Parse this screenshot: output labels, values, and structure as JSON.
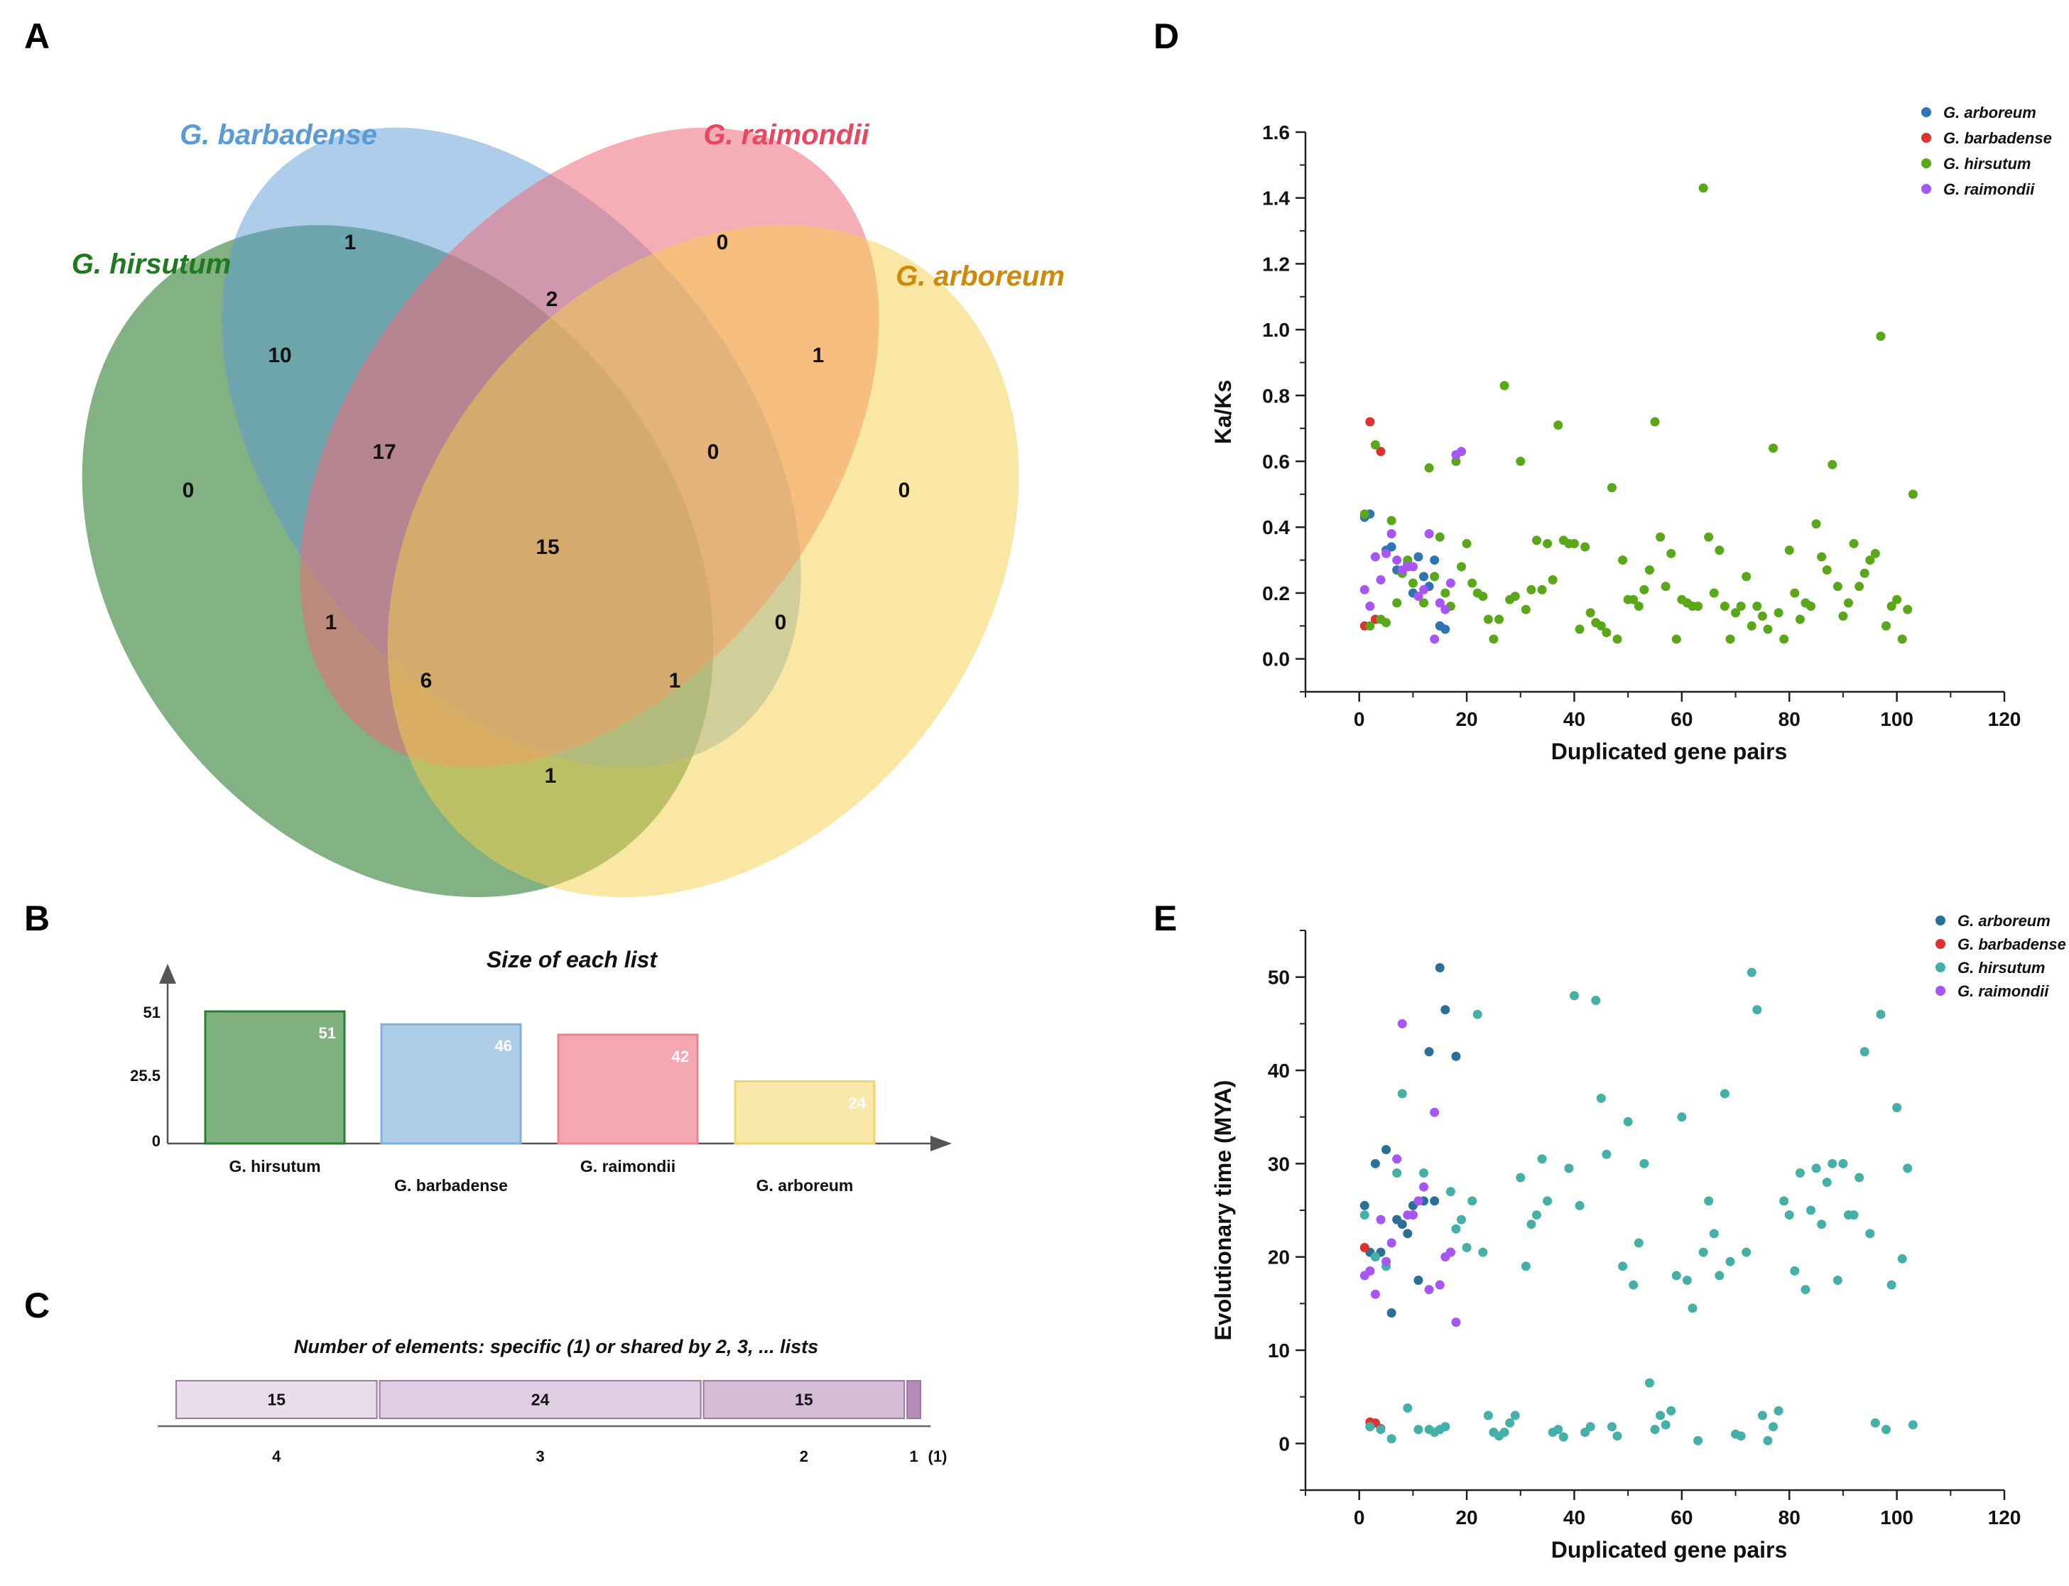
{
  "panels": {
    "A": {
      "letter": "A",
      "sets": [
        {
          "name": "G. barbadense",
          "color": "#5b9bd5"
        },
        {
          "name": "G. raimondii",
          "color": "#e8485f"
        },
        {
          "name": "G. hirsutum",
          "color": "#1f7a1f"
        },
        {
          "name": "G. arboreum",
          "color": "#d08a0b"
        }
      ],
      "region_counts": {
        "barbadense_only": "1",
        "raimondii_only": "0",
        "hirsutum_only": "0",
        "arboreum_only": "0",
        "hir_bar": "10",
        "bar_rai": "2",
        "rai_arb": "1",
        "hir_rai": "1",
        "bar_arb": "0",
        "hir_arb": "1",
        "hir_bar_rai": "17",
        "bar_rai_arb": "0",
        "hir_rai_arb": "6",
        "hir_bar_arb": "1",
        "all_four": "15"
      }
    },
    "B": {
      "letter": "B",
      "title": "Size of each list",
      "yticks": [
        "51",
        "25.5",
        "0"
      ],
      "bars": [
        {
          "label": "G. hirsutum",
          "value": 51,
          "value_label": "51",
          "fill": "#7fb27f",
          "stroke": "#2e7d32"
        },
        {
          "label": "G. barbadense",
          "value": 46,
          "value_label": "46",
          "fill": "#aecde9",
          "stroke": "#7fb1dc"
        },
        {
          "label": "G. raimondii",
          "value": 42,
          "value_label": "42",
          "fill": "#f4a7b0",
          "stroke": "#e88592"
        },
        {
          "label": "G. arboreum",
          "value": 24,
          "value_label": "24",
          "fill": "#f9e8a8",
          "stroke": "#f0d56e"
        }
      ]
    },
    "C": {
      "letter": "C",
      "title": "Number of elements: specific (1) or shared by 2, 3, ... lists",
      "segments": [
        {
          "label": "15",
          "value": 15,
          "axis_label": "4",
          "fill": "#eadcea"
        },
        {
          "label": "24",
          "value": 24,
          "axis_label": "3",
          "fill": "#e0cde3"
        },
        {
          "label": "15",
          "value": 15,
          "axis_label": "2",
          "fill": "#d5bcd7"
        },
        {
          "label": "",
          "value": 1,
          "axis_label": "1",
          "fill": "#b58bb7"
        }
      ],
      "extra_label": "(1)"
    },
    "D": {
      "letter": "D"
    },
    "E": {
      "letter": "E"
    }
  },
  "chart_data": [
    {
      "panel": "D",
      "type": "scatter",
      "xlabel": "Duplicated gene pairs",
      "ylabel": "Ka/Ks",
      "xlim": [
        -10,
        120
      ],
      "ylim": [
        -0.1,
        1.6
      ],
      "xticks": [
        "0",
        "20",
        "40",
        "60",
        "80",
        "100",
        "120"
      ],
      "yticks": [
        "0.0",
        "0.2",
        "0.4",
        "0.6",
        "0.8",
        "1.0",
        "1.2",
        "1.4",
        "1.6"
      ],
      "legend_position": "top-right",
      "series": [
        {
          "name": "G. arboreum",
          "color": "#2f75b5",
          "x": [
            1,
            2,
            5,
            6,
            7,
            8,
            9,
            10,
            11,
            12,
            13,
            14,
            15,
            16
          ],
          "y": [
            0.43,
            0.44,
            0.33,
            0.34,
            0.27,
            0.26,
            0.29,
            0.2,
            0.31,
            0.25,
            0.22,
            0.3,
            0.1,
            0.09
          ]
        },
        {
          "name": "G. barbadense",
          "color": "#e03030",
          "x": [
            1,
            2,
            3,
            4
          ],
          "y": [
            0.1,
            0.72,
            0.12,
            0.63
          ]
        },
        {
          "name": "G. hirsutum",
          "color": "#5aa71a",
          "x": [
            1,
            2,
            3,
            4,
            5,
            6,
            7,
            8,
            9,
            10,
            11,
            12,
            13,
            14,
            15,
            16,
            17,
            18,
            19,
            20,
            21,
            22,
            23,
            24,
            25,
            26,
            27,
            28,
            29,
            30,
            31,
            32,
            33,
            34,
            35,
            36,
            37,
            38,
            39,
            40,
            41,
            42,
            43,
            44,
            45,
            46,
            47,
            48,
            49,
            50,
            51,
            52,
            53,
            54,
            55,
            56,
            57,
            58,
            59,
            60,
            61,
            62,
            63,
            64,
            65,
            66,
            67,
            68,
            69,
            70,
            71,
            72,
            73,
            74,
            75,
            76,
            77,
            78,
            79,
            80,
            81,
            82,
            83,
            84,
            85,
            86,
            87,
            88,
            89,
            90,
            91,
            92,
            93,
            94,
            95,
            96,
            97,
            98,
            99,
            100,
            101,
            102,
            103
          ],
          "y": [
            0.44,
            0.1,
            0.65,
            0.12,
            0.11,
            0.42,
            0.17,
            0.26,
            0.3,
            0.23,
            0.19,
            0.17,
            0.58,
            0.25,
            0.37,
            0.2,
            0.16,
            0.6,
            0.28,
            0.35,
            0.23,
            0.2,
            0.19,
            0.12,
            0.06,
            0.12,
            0.83,
            0.18,
            0.19,
            0.6,
            0.15,
            0.21,
            0.36,
            0.21,
            0.35,
            0.24,
            0.71,
            0.36,
            0.35,
            0.35,
            0.09,
            0.34,
            0.14,
            0.11,
            0.1,
            0.08,
            0.52,
            0.06,
            0.3,
            0.18,
            0.18,
            0.16,
            0.21,
            0.27,
            0.72,
            0.37,
            0.22,
            0.32,
            0.06,
            0.18,
            0.17,
            0.16,
            0.16,
            1.43,
            0.37,
            0.2,
            0.33,
            0.16,
            0.06,
            0.14,
            0.16,
            0.25,
            0.1,
            0.16,
            0.13,
            0.09,
            0.64,
            0.14,
            0.06,
            0.33,
            0.2,
            0.12,
            0.17,
            0.16,
            0.41,
            0.31,
            0.27,
            0.59,
            0.22,
            0.13,
            0.17,
            0.35,
            0.22,
            0.26,
            0.3,
            0.32,
            0.98,
            0.1,
            0.16,
            0.18,
            0.06,
            0.15,
            0.5
          ]
        },
        {
          "name": "G. raimondii",
          "color": "#a855f7",
          "x": [
            1,
            2,
            3,
            4,
            5,
            6,
            7,
            8,
            9,
            10,
            11,
            12,
            13,
            14,
            15,
            16,
            17,
            18,
            19
          ],
          "y": [
            0.21,
            0.16,
            0.31,
            0.24,
            0.32,
            0.38,
            0.3,
            0.27,
            0.28,
            0.28,
            0.19,
            0.21,
            0.38,
            0.06,
            0.17,
            0.15,
            0.23,
            0.62,
            0.63
          ]
        }
      ]
    },
    {
      "panel": "E",
      "type": "scatter",
      "xlabel": "Duplicated gene pairs",
      "ylabel": "Evolutionary time (MYA)",
      "xlim": [
        -10,
        120
      ],
      "ylim": [
        -5,
        55
      ],
      "xticks": [
        "0",
        "20",
        "40",
        "60",
        "80",
        "100",
        "120"
      ],
      "yticks": [
        "0",
        "10",
        "20",
        "30",
        "40",
        "50"
      ],
      "legend_position": "top-right",
      "series": [
        {
          "name": "G. arboreum",
          "color": "#2a6f97",
          "x": [
            1,
            2,
            3,
            4,
            5,
            6,
            7,
            8,
            9,
            10,
            11,
            12,
            13,
            14,
            15,
            16,
            17,
            18
          ],
          "y": [
            25.5,
            20.5,
            30,
            20.5,
            31.5,
            14,
            24,
            23.5,
            22.5,
            25.5,
            17.5,
            26,
            42,
            26,
            51,
            46.5,
            20.5,
            41.5
          ]
        },
        {
          "name": "G. barbadense",
          "color": "#e03030",
          "x": [
            1,
            2,
            3,
            4
          ],
          "y": [
            21,
            2.3,
            2.2,
            1.6
          ]
        },
        {
          "name": "G. hirsutum",
          "color": "#45b0a8",
          "x": [
            1,
            2,
            3,
            4,
            5,
            6,
            7,
            8,
            9,
            10,
            11,
            12,
            13,
            14,
            15,
            16,
            17,
            18,
            19,
            20,
            21,
            22,
            23,
            24,
            25,
            26,
            27,
            28,
            29,
            30,
            31,
            32,
            33,
            34,
            35,
            36,
            37,
            38,
            39,
            40,
            41,
            42,
            43,
            44,
            45,
            46,
            47,
            48,
            49,
            50,
            51,
            52,
            53,
            54,
            55,
            56,
            57,
            58,
            59,
            60,
            61,
            62,
            63,
            64,
            65,
            66,
            67,
            68,
            69,
            70,
            71,
            72,
            73,
            74,
            75,
            76,
            77,
            78,
            79,
            80,
            81,
            82,
            83,
            84,
            85,
            86,
            87,
            88,
            89,
            90,
            91,
            92,
            93,
            94,
            95,
            96,
            97,
            98,
            99,
            100,
            101,
            102,
            103
          ],
          "y": [
            24.5,
            1.8,
            20,
            1.5,
            19,
            0.5,
            29,
            37.5,
            3.8,
            24.5,
            1.5,
            29,
            1.5,
            1.2,
            1.5,
            1.8,
            27,
            23,
            24,
            21,
            26,
            46,
            20.5,
            3,
            1.2,
            0.8,
            1.2,
            2.2,
            3,
            28.5,
            19,
            23.5,
            24.5,
            30.5,
            26,
            1.2,
            1.5,
            0.7,
            29.5,
            48,
            25.5,
            1.2,
            1.8,
            47.5,
            37,
            31,
            1.8,
            0.8,
            19,
            34.5,
            17,
            21.5,
            30,
            6.5,
            1.5,
            3,
            2,
            3.5,
            18,
            35,
            17.5,
            14.5,
            0.3,
            20.5,
            26,
            22.5,
            18,
            37.5,
            19.5,
            1,
            0.8,
            20.5,
            50.5,
            46.5,
            3,
            0.3,
            1.8,
            3.5,
            26,
            24.5,
            18.5,
            29,
            16.5,
            25,
            29.5,
            23.5,
            28,
            30,
            17.5,
            30,
            24.5,
            24.5,
            28.5,
            42,
            22.5,
            2.2,
            46,
            1.5,
            17,
            36,
            19.8,
            29.5,
            2
          ]
        },
        {
          "name": "G. raimondii",
          "color": "#a855f7",
          "x": [
            1,
            2,
            3,
            4,
            5,
            6,
            7,
            8,
            9,
            10,
            11,
            12,
            13,
            14,
            15,
            16,
            17,
            18
          ],
          "y": [
            18,
            18.5,
            16,
            24,
            19.5,
            21.5,
            30.5,
            45,
            24.5,
            24.5,
            26,
            27.5,
            16.5,
            35.5,
            17,
            20,
            20.5,
            13
          ]
        }
      ]
    }
  ]
}
